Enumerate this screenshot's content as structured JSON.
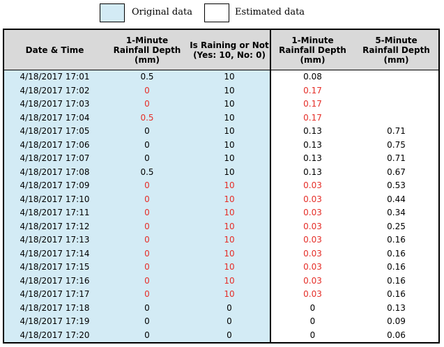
{
  "legend": {
    "original_label": "Original data",
    "estimated_label": "Estimated data",
    "original_color": "#d3ebf5",
    "estimated_color": "#ffffff"
  },
  "headers": {
    "datetime": "Date & Time",
    "rain1": "1-Minute\nRainfall Depth\n(mm)",
    "raining": "Is Raining or Not\n(Yes: 10, No: 0)",
    "est1": "1-Minute\nRainfall Depth\n(mm)",
    "est5": "5-Minute\nRainfall Depth\n(mm)"
  },
  "highlight_color": "#e52d27",
  "rows": [
    {
      "datetime": "4/18/2017 17:01",
      "rain1": "0.5",
      "raining": "10",
      "est1": "0.08",
      "est5": "",
      "rain1_red": false,
      "raining_red": false,
      "est1_red": false
    },
    {
      "datetime": "4/18/2017 17:02",
      "rain1": "0",
      "raining": "10",
      "est1": "0.17",
      "est5": "",
      "rain1_red": true,
      "raining_red": false,
      "est1_red": true
    },
    {
      "datetime": "4/18/2017 17:03",
      "rain1": "0",
      "raining": "10",
      "est1": "0.17",
      "est5": "",
      "rain1_red": true,
      "raining_red": false,
      "est1_red": true
    },
    {
      "datetime": "4/18/2017 17:04",
      "rain1": "0.5",
      "raining": "10",
      "est1": "0.17",
      "est5": "",
      "rain1_red": true,
      "raining_red": false,
      "est1_red": true
    },
    {
      "datetime": "4/18/2017 17:05",
      "rain1": "0",
      "raining": "10",
      "est1": "0.13",
      "est5": "0.71",
      "rain1_red": false,
      "raining_red": false,
      "est1_red": false
    },
    {
      "datetime": "4/18/2017 17:06",
      "rain1": "0",
      "raining": "10",
      "est1": "0.13",
      "est5": "0.75",
      "rain1_red": false,
      "raining_red": false,
      "est1_red": false
    },
    {
      "datetime": "4/18/2017 17:07",
      "rain1": "0",
      "raining": "10",
      "est1": "0.13",
      "est5": "0.71",
      "rain1_red": false,
      "raining_red": false,
      "est1_red": false
    },
    {
      "datetime": "4/18/2017 17:08",
      "rain1": "0.5",
      "raining": "10",
      "est1": "0.13",
      "est5": "0.67",
      "rain1_red": false,
      "raining_red": false,
      "est1_red": false
    },
    {
      "datetime": "4/18/2017 17:09",
      "rain1": "0",
      "raining": "10",
      "est1": "0.03",
      "est5": "0.53",
      "rain1_red": true,
      "raining_red": true,
      "est1_red": true
    },
    {
      "datetime": "4/18/2017 17:10",
      "rain1": "0",
      "raining": "10",
      "est1": "0.03",
      "est5": "0.44",
      "rain1_red": true,
      "raining_red": true,
      "est1_red": true
    },
    {
      "datetime": "4/18/2017 17:11",
      "rain1": "0",
      "raining": "10",
      "est1": "0.03",
      "est5": "0.34",
      "rain1_red": true,
      "raining_red": true,
      "est1_red": true
    },
    {
      "datetime": "4/18/2017 17:12",
      "rain1": "0",
      "raining": "10",
      "est1": "0.03",
      "est5": "0.25",
      "rain1_red": true,
      "raining_red": true,
      "est1_red": true
    },
    {
      "datetime": "4/18/2017 17:13",
      "rain1": "0",
      "raining": "10",
      "est1": "0.03",
      "est5": "0.16",
      "rain1_red": true,
      "raining_red": true,
      "est1_red": true
    },
    {
      "datetime": "4/18/2017 17:14",
      "rain1": "0",
      "raining": "10",
      "est1": "0.03",
      "est5": "0.16",
      "rain1_red": true,
      "raining_red": true,
      "est1_red": true
    },
    {
      "datetime": "4/18/2017 17:15",
      "rain1": "0",
      "raining": "10",
      "est1": "0.03",
      "est5": "0.16",
      "rain1_red": true,
      "raining_red": true,
      "est1_red": true
    },
    {
      "datetime": "4/18/2017 17:16",
      "rain1": "0",
      "raining": "10",
      "est1": "0.03",
      "est5": "0.16",
      "rain1_red": true,
      "raining_red": true,
      "est1_red": true
    },
    {
      "datetime": "4/18/2017 17:17",
      "rain1": "0",
      "raining": "10",
      "est1": "0.03",
      "est5": "0.16",
      "rain1_red": true,
      "raining_red": true,
      "est1_red": true
    },
    {
      "datetime": "4/18/2017 17:18",
      "rain1": "0",
      "raining": "0",
      "est1": "0",
      "est5": "0.13",
      "rain1_red": false,
      "raining_red": false,
      "est1_red": false
    },
    {
      "datetime": "4/18/2017 17:19",
      "rain1": "0",
      "raining": "0",
      "est1": "0",
      "est5": "0.09",
      "rain1_red": false,
      "raining_red": false,
      "est1_red": false
    },
    {
      "datetime": "4/18/2017 17:20",
      "rain1": "0",
      "raining": "0",
      "est1": "0",
      "est5": "0.06",
      "rain1_red": false,
      "raining_red": false,
      "est1_red": false
    }
  ]
}
